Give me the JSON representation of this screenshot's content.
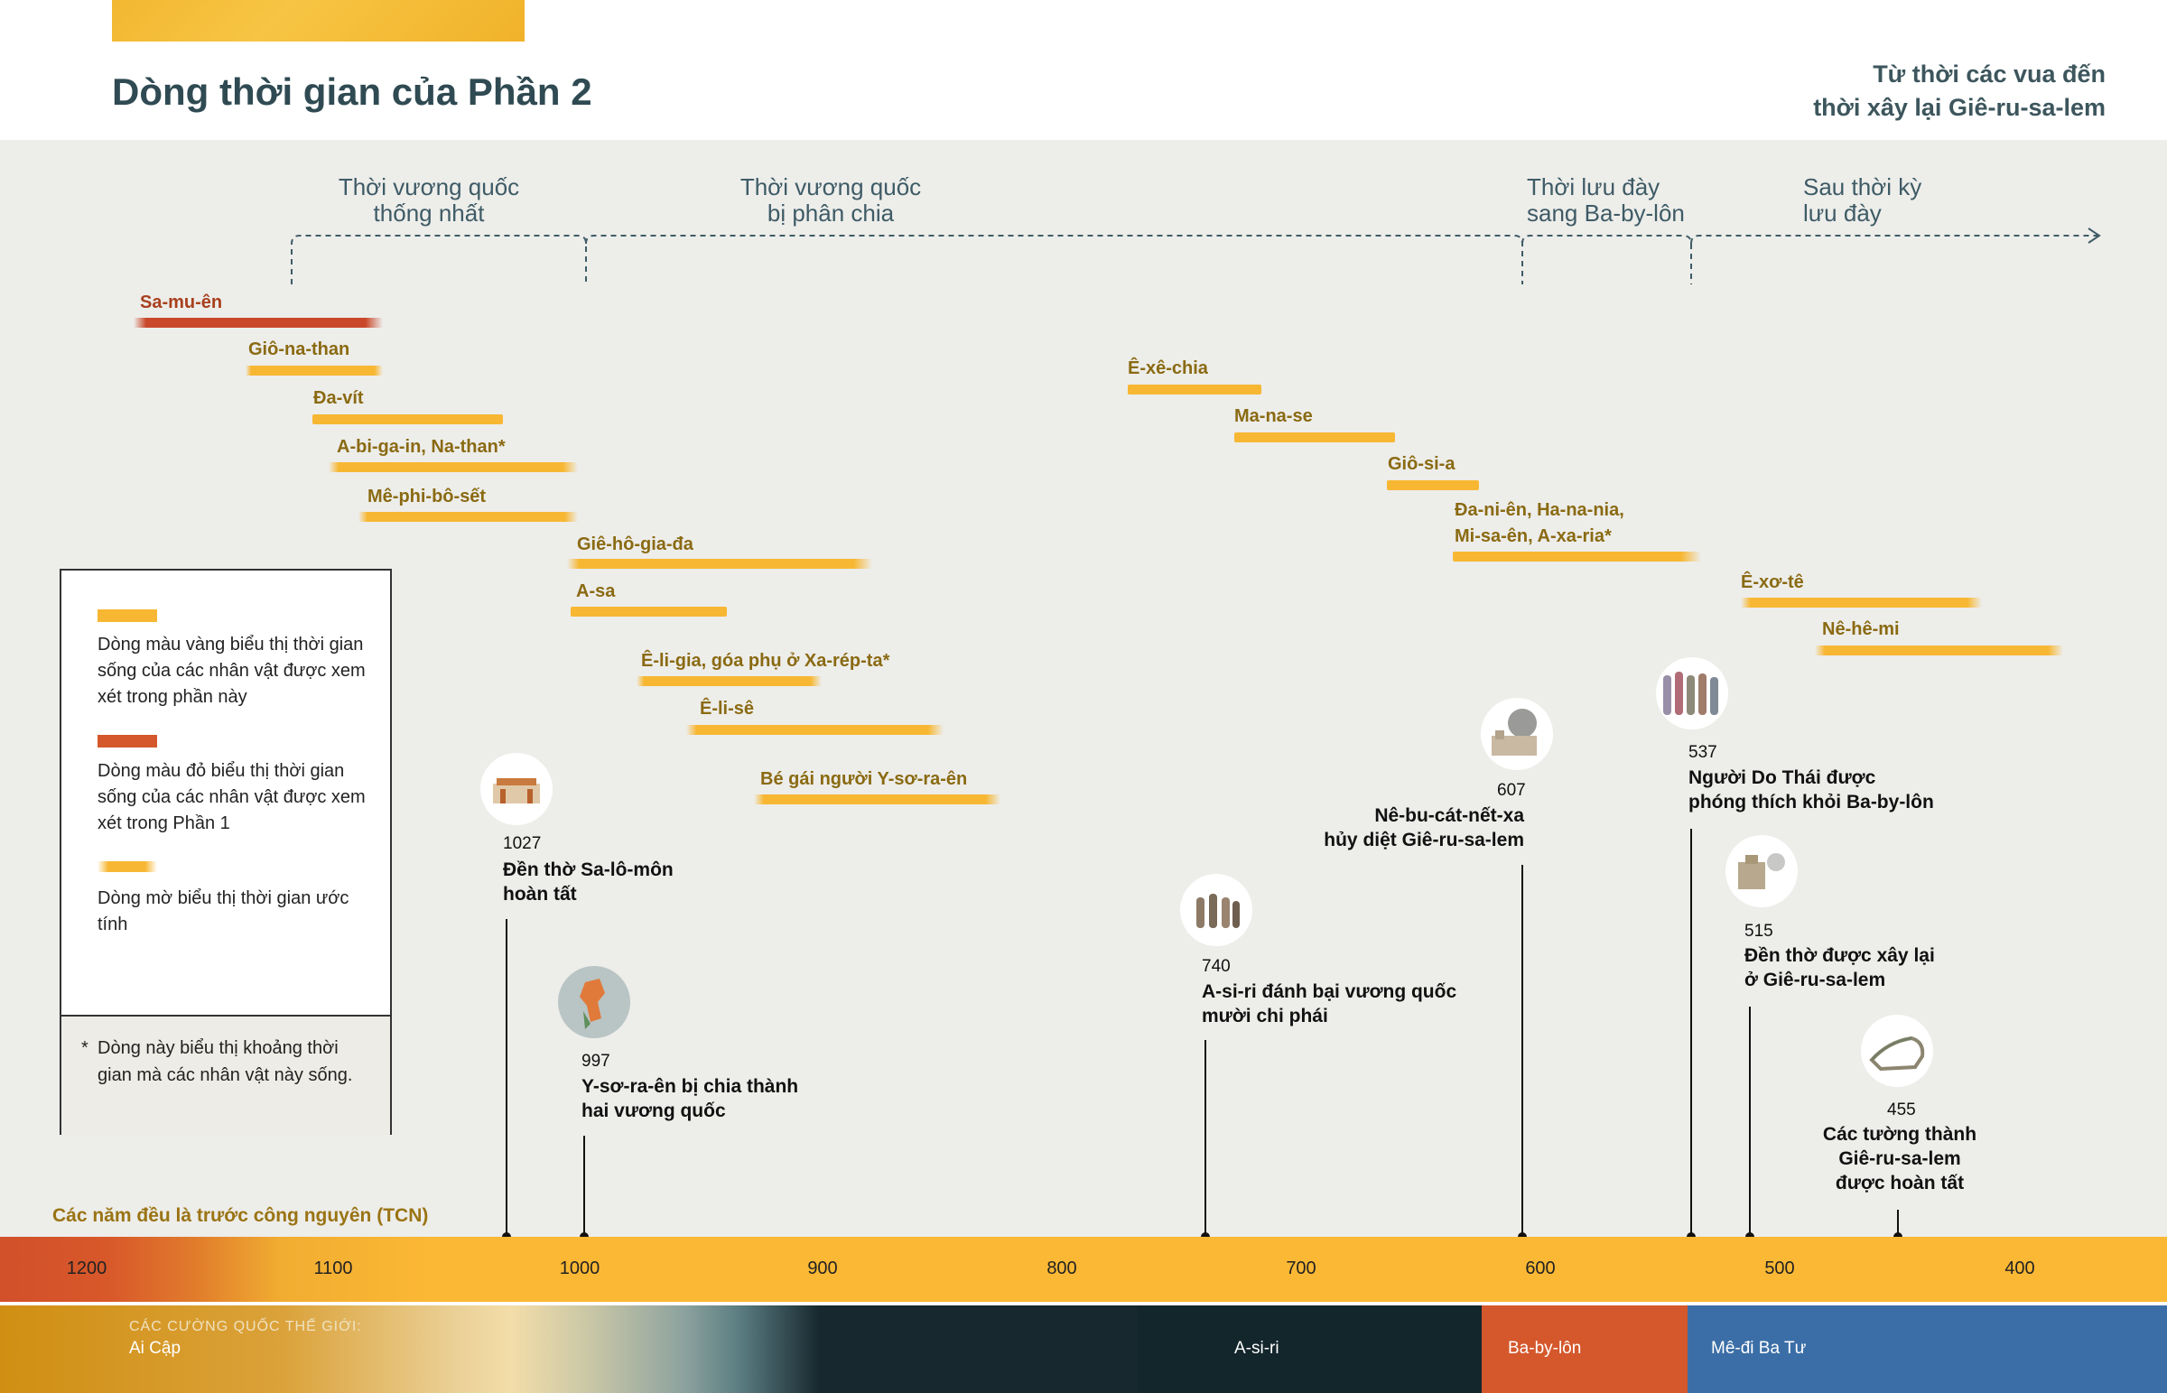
{
  "title": "Dòng thời gian của Phần 2",
  "subtitle": [
    "Từ thời các vua đến",
    "thời xây lại Giê-ru-sa-lem"
  ],
  "eras": [
    {
      "line1": "Thời vương quốc",
      "line2": "thống nhất"
    },
    {
      "line1": "Thời vương quốc",
      "line2": "bị phân chia"
    },
    {
      "line1": "Thời lưu đày",
      "line2": "sang Ba-by-lôn"
    },
    {
      "line1": "Sau thời kỳ",
      "line2": "lưu đày"
    }
  ],
  "people": [
    {
      "name": "Sa-mu-ên",
      "color": "red"
    },
    {
      "name": "Giô-na-than"
    },
    {
      "name": "Đa-vít"
    },
    {
      "name": "A-bi-ga-in, Na-than*"
    },
    {
      "name": "Mê-phi-bô-sết"
    },
    {
      "name": "Giê-hô-gia-đa"
    },
    {
      "name": "A-sa"
    },
    {
      "name": "Ê-li-gia, góa phụ ở Xa-rép-ta*"
    },
    {
      "name": "Ê-li-sê"
    },
    {
      "name": "Bé gái người Y-sơ-ra-ên"
    },
    {
      "name": "Ê-xê-chia"
    },
    {
      "name": "Ma-na-se"
    },
    {
      "name": "Giô-si-a"
    },
    {
      "name": "Đa-ni-ên, Ha-na-nia,",
      "name2": "Mi-sa-ên, A-xa-ria*"
    },
    {
      "name": "Ê-xơ-tê"
    },
    {
      "name": "Nê-hê-mi"
    }
  ],
  "legend": {
    "yellow": "Dòng màu vàng biểu thị thời gian sống của các nhân vật được xem xét trong phần này",
    "red": "Dòng màu đỏ biểu thị thời gian sống của các nhân vật được xem xét trong Phần 1",
    "faded": "Dòng mờ biểu thị thời gian ước tính",
    "note_star": "*",
    "note": "Dòng này biểu thị khoảng thời gian mà các nhân vật này sống."
  },
  "events": [
    {
      "year": "1027",
      "line1": "Đền thờ Sa-lô-môn",
      "line2": "hoàn tất"
    },
    {
      "year": "997",
      "line1": "Y-sơ-ra-ên bị chia thành",
      "line2": "hai vương quốc"
    },
    {
      "year": "740",
      "line1": "A-si-ri đánh bại vương quốc",
      "line2": "mười chi phái"
    },
    {
      "year": "607",
      "line1": "Nê-bu-cát-nết-xa",
      "line2": "hủy diệt Giê-ru-sa-lem"
    },
    {
      "year": "537",
      "line1": "Người Do Thái được",
      "line2": "phóng thích khỏi Ba-by-lôn"
    },
    {
      "year": "515",
      "line1": "Đền thờ được xây lại",
      "line2": "ở Giê-ru-sa-lem"
    },
    {
      "year": "455",
      "line1": "Các tường thành",
      "line2": "Giê-ru-sa-lem",
      "line3": "được hoàn tất"
    }
  ],
  "bce_note": "Các năm đều là trước công nguyên (TCN)",
  "axis_ticks": [
    "1200",
    "1100",
    "1000",
    "900",
    "800",
    "700",
    "600",
    "500",
    "400"
  ],
  "powers": {
    "caption": "CÁC CƯỜNG QUỐC THẾ GIỚI:",
    "names": [
      "Ai Cập",
      "A-si-ri",
      "Ba-by-lôn",
      "Mê-đi Ba Tư"
    ]
  },
  "colors": {
    "yellow": "#f7b733",
    "red": "#c9482a",
    "axis": "#fbb834",
    "egypt": "#d08f13",
    "assyria": "#13262c",
    "babylon": "#d4582c",
    "medo_persia": "#3b6ea6"
  }
}
